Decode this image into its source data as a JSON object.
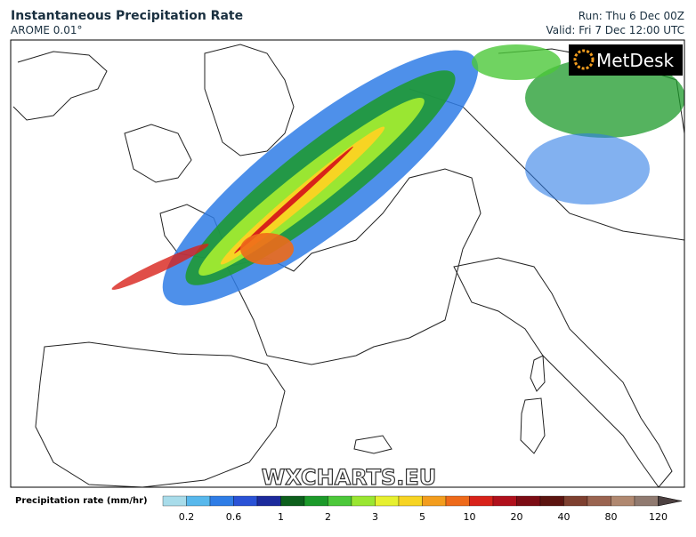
{
  "header": {
    "title": "Instantaneous Precipitation Rate",
    "model": "AROME 0.01°",
    "run": "Run: Thu 6 Dec 00Z",
    "valid": "Valid: Fri 7 Dec 12:00 UTC"
  },
  "logo": "MetDesk",
  "watermark": "WXCHARTS.EU",
  "colorbar": {
    "label": "Precipitation rate (mm/hr)",
    "ticks": [
      "0.2",
      "0.6",
      "1",
      "2",
      "3",
      "5",
      "10",
      "20",
      "40",
      "80",
      "120"
    ],
    "colors": [
      "#a8dcea",
      "#58b8ec",
      "#2f7de6",
      "#2a52d6",
      "#1c2a9c",
      "#0d5f1c",
      "#1c9a2a",
      "#4cc83a",
      "#9ae632",
      "#e6f030",
      "#f7d423",
      "#f39d1e",
      "#ee6a1a",
      "#d8221a",
      "#b0101c",
      "#7c0c14",
      "#5c1410",
      "#7e4030",
      "#9a6450",
      "#b08870",
      "#907a70",
      "#4c4040"
    ]
  }
}
